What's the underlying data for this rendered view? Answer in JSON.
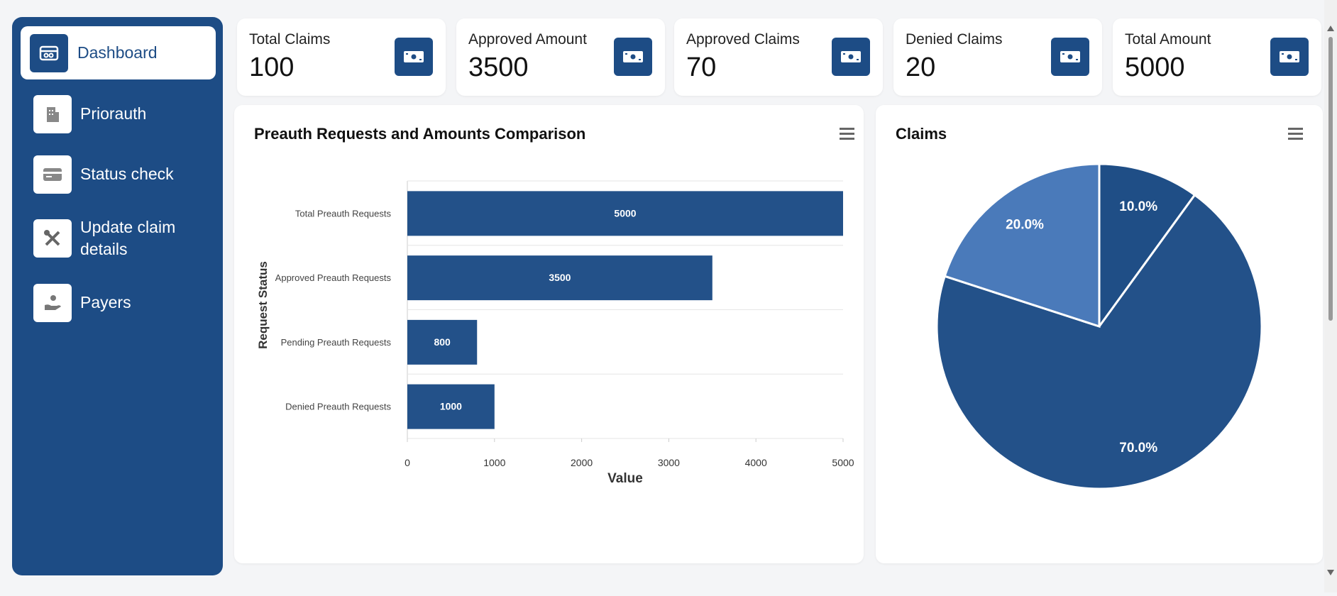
{
  "sidebar": {
    "items": [
      "Dashboard",
      "Priorauth",
      "Status check",
      "Update claim details",
      "Payers"
    ]
  },
  "cards": [
    {
      "title": "Total Claims",
      "value": 100
    },
    {
      "title": "Approved Amount",
      "value": 3500
    },
    {
      "title": "Approved Claims",
      "value": 70
    },
    {
      "title": "Denied Claims",
      "value": 20
    },
    {
      "title": "Total Amount",
      "value": 5000
    }
  ],
  "chart_data": [
    {
      "type": "bar",
      "orientation": "horizontal",
      "title": "Preauth Requests and Amounts Comparison",
      "xlabel": "Value",
      "ylabel": "Request Status",
      "categories": [
        "Total Preauth Requests",
        "Approved Preauth Requests",
        "Pending Preauth Requests",
        "Denied Preauth Requests"
      ],
      "values": [
        5000,
        3500,
        800,
        1000
      ],
      "color": "#235189",
      "xlim": [
        0,
        5000
      ],
      "xticks": [
        0,
        1000,
        2000,
        3000,
        4000,
        5000
      ],
      "grid": true
    },
    {
      "type": "pie",
      "title": "Claims",
      "values": [
        10,
        70,
        20
      ],
      "value_labels": [
        "10.0%",
        "70.0%",
        "20.0%"
      ],
      "colors": [
        "#1f4e86",
        "#235189",
        "#4a7aba"
      ]
    }
  ]
}
